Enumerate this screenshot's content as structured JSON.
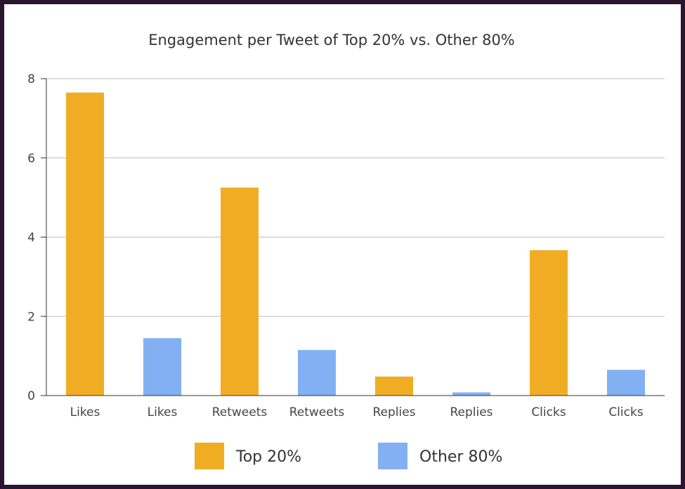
{
  "chart_data": {
    "type": "bar",
    "title": "Engagement per Tweet of Top 20% vs. Other 80%",
    "xlabel": "",
    "ylabel": "",
    "ylim": [
      0,
      8
    ],
    "yticks": [
      0,
      2,
      4,
      6,
      8
    ],
    "grid": true,
    "legend_position": "bottom",
    "categories": [
      "Likes",
      "Likes",
      "Retweets",
      "Retweets",
      "Replies",
      "Replies",
      "Clicks",
      "Clicks"
    ],
    "values": [
      7.65,
      1.45,
      5.25,
      1.15,
      0.48,
      0.08,
      3.67,
      0.65
    ],
    "bar_series": [
      0,
      1,
      0,
      1,
      0,
      1,
      0,
      1
    ],
    "series": [
      {
        "name": "Top 20%",
        "color": "#f0ad24"
      },
      {
        "name": "Other 80%",
        "color": "#82b0f2"
      }
    ]
  }
}
